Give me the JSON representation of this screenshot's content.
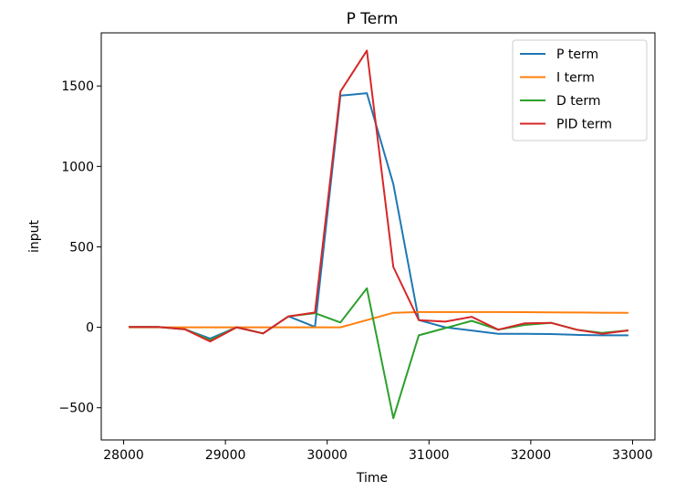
{
  "chart_data": {
    "type": "line",
    "title": "P Term",
    "xlabel": "Time",
    "ylabel": "input",
    "xlim": [
      27780,
      33220
    ],
    "ylim": [
      -700,
      1830
    ],
    "xticks": [
      28000,
      29000,
      30000,
      31000,
      32000,
      33000
    ],
    "xtick_labels": [
      "28000",
      "29000",
      "30000",
      "31000",
      "32000",
      "33000"
    ],
    "yticks": [
      -500,
      0,
      500,
      1000,
      1500
    ],
    "ytick_labels": [
      "−500",
      "0",
      "500",
      "1000",
      "1500"
    ],
    "grid": false,
    "legend_position": "top-right",
    "x": [
      28060,
      28340,
      28600,
      28850,
      29110,
      29370,
      29620,
      29880,
      30130,
      30390,
      30650,
      30900,
      31160,
      31420,
      31680,
      31940,
      32200,
      32450,
      32700,
      32950
    ],
    "series": [
      {
        "name": "P term",
        "color": "#1f77b4",
        "values": [
          2,
          2,
          -12,
          -70,
          0,
          -38,
          68,
          2,
          1440,
          1455,
          890,
          45,
          0,
          -20,
          -40,
          -40,
          -42,
          -47,
          -50,
          -50
        ]
      },
      {
        "name": "I term",
        "color": "#ff7f0e",
        "values": [
          0,
          0,
          0,
          0,
          0,
          0,
          0,
          0,
          0,
          45,
          90,
          95,
          95,
          95,
          95,
          94,
          93,
          92,
          91,
          90
        ]
      },
      {
        "name": "D term",
        "color": "#2ca02c",
        "values": [
          2,
          2,
          -12,
          -80,
          0,
          -38,
          68,
          88,
          30,
          243,
          -565,
          -50,
          -5,
          40,
          -15,
          15,
          28,
          -15,
          -35,
          -20
        ]
      },
      {
        "name": "PID term",
        "color": "#d62728",
        "values": [
          2,
          2,
          -12,
          -88,
          0,
          -38,
          68,
          92,
          1465,
          1720,
          375,
          45,
          35,
          65,
          -15,
          25,
          28,
          -15,
          -40,
          -20
        ]
      }
    ]
  }
}
